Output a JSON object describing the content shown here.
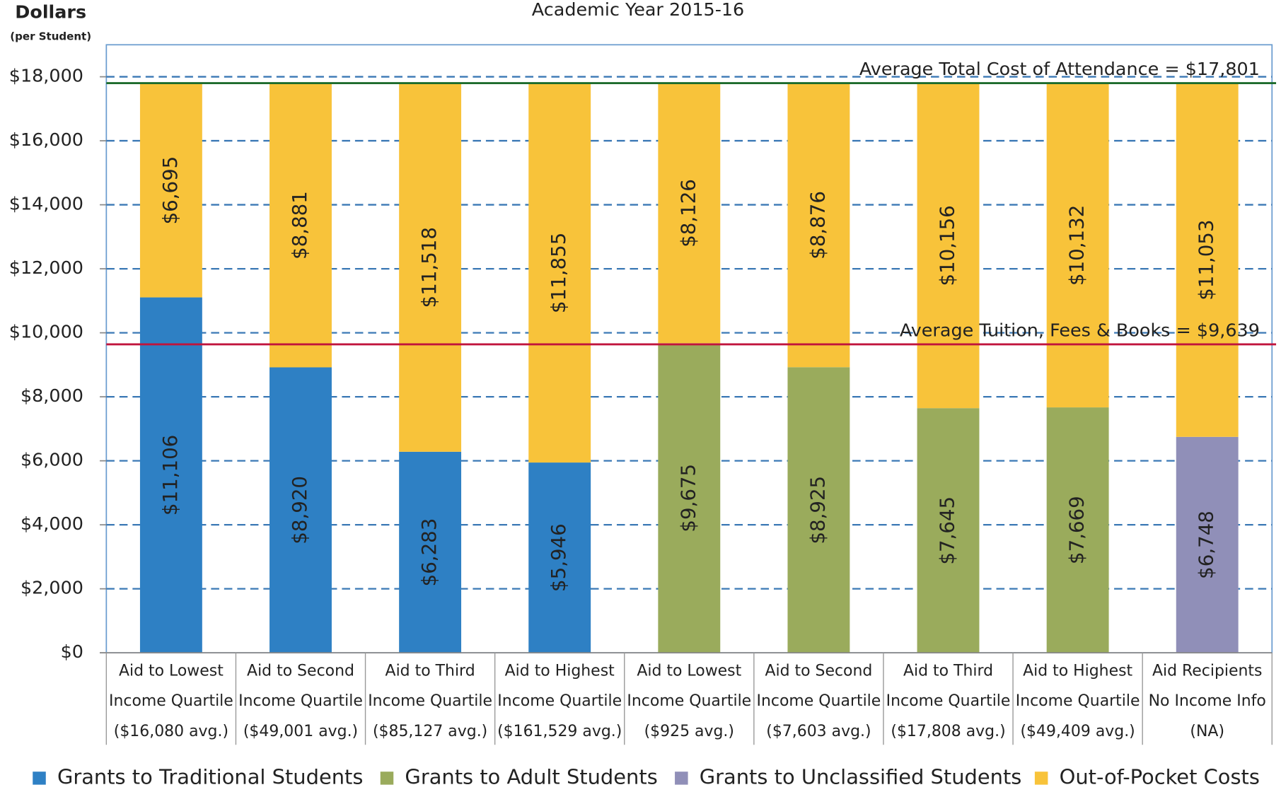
{
  "chart_data": {
    "type": "stacked_bar",
    "title": "Academic Year 2015-16",
    "ylabel": "Dollars",
    "ylabel_sub": "(per Student)",
    "categories": [
      [
        "Aid to Lowest",
        "Income Quartile",
        "($16,080 avg.)"
      ],
      [
        "Aid to Second",
        "Income Quartile",
        "($49,001 avg.)"
      ],
      [
        "Aid to Third",
        "Income Quartile",
        "($85,127 avg.)"
      ],
      [
        "Aid to Highest",
        "Income Quartile",
        "($161,529 avg.)"
      ],
      [
        "Aid to Lowest",
        "Income Quartile",
        "($925 avg.)"
      ],
      [
        "Aid to Second",
        "Income Quartile",
        "($7,603 avg.)"
      ],
      [
        "Aid to Third",
        "Income Quartile",
        "($17,808 avg.)"
      ],
      [
        "Aid to Highest",
        "Income Quartile",
        "($49,409 avg.)"
      ],
      [
        "Aid Recipients",
        "No Income Info",
        "(NA)"
      ]
    ],
    "series": [
      {
        "name": "Grants to Traditional Students",
        "color": "#2e80c4",
        "values": [
          11106,
          8920,
          6283,
          5946,
          null,
          null,
          null,
          null,
          null
        ],
        "value_labels": [
          "$11,106",
          "$8,920",
          "$6,283",
          "$5,946",
          null,
          null,
          null,
          null,
          null
        ]
      },
      {
        "name": "Grants to Adult Students",
        "color": "#9aab5c",
        "values": [
          null,
          null,
          null,
          null,
          9675,
          8925,
          7645,
          7669,
          null
        ],
        "value_labels": [
          null,
          null,
          null,
          null,
          "$9,675",
          "$8,925",
          "$7,645",
          "$7,669",
          null
        ]
      },
      {
        "name": "Grants to Unclassified Students",
        "color": "#908fb8",
        "values": [
          null,
          null,
          null,
          null,
          null,
          null,
          null,
          null,
          6748
        ],
        "value_labels": [
          null,
          null,
          null,
          null,
          null,
          null,
          null,
          null,
          "$6,748"
        ]
      },
      {
        "name": "Out-of-Pocket Costs",
        "color": "#f8c33a",
        "values": [
          6695,
          8881,
          11518,
          11855,
          8126,
          8876,
          10156,
          10132,
          11053
        ],
        "value_labels": [
          "$6,695",
          "$8,881",
          "$11,518",
          "$11,855",
          "$8,126",
          "$8,876",
          "$10,156",
          "$10,132",
          "$11,053"
        ]
      }
    ],
    "reference_lines": [
      {
        "label": "Average Total Cost of Attendance = $17,801",
        "value": 17801,
        "color": "#1d6b2c"
      },
      {
        "label": "Average Tuition, Fees & Books = $9,639",
        "value": 9639,
        "color": "#c0143c"
      }
    ],
    "ylim": [
      0,
      19000
    ],
    "yticks": [
      {
        "value": 0,
        "label": "$0"
      },
      {
        "value": 2000,
        "label": "$2,000"
      },
      {
        "value": 4000,
        "label": "$4,000"
      },
      {
        "value": 6000,
        "label": "$6,000"
      },
      {
        "value": 8000,
        "label": "$8,000"
      },
      {
        "value": 10000,
        "label": "$10,000"
      },
      {
        "value": 12000,
        "label": "$12,000"
      },
      {
        "value": 14000,
        "label": "$14,000"
      },
      {
        "value": 16000,
        "label": "$16,000"
      },
      {
        "value": 18000,
        "label": "$18,000"
      }
    ],
    "grid": true
  }
}
